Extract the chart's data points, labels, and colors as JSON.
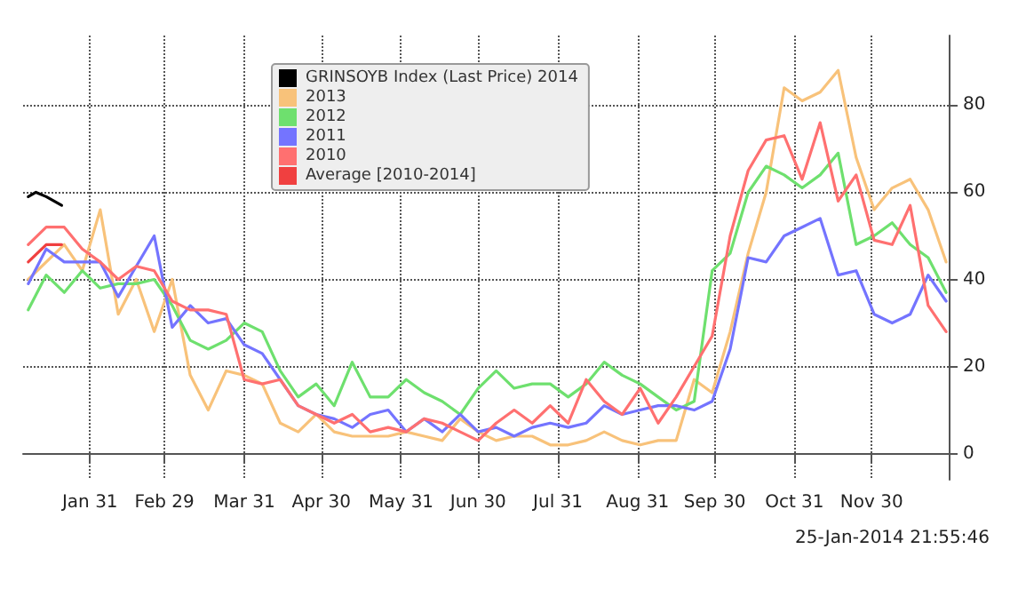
{
  "chart_data": {
    "type": "line",
    "xlim": [
      "--01-05",
      "--12-30"
    ],
    "xticks": [
      {
        "value": "--01-31",
        "label": "Jan 31"
      },
      {
        "value": "--02-29",
        "label": "Feb 29"
      },
      {
        "value": "--03-31",
        "label": "Mar 31"
      },
      {
        "value": "--04-30",
        "label": "Apr 30"
      },
      {
        "value": "--05-31",
        "label": "May 31"
      },
      {
        "value": "--06-30",
        "label": "Jun 30"
      },
      {
        "value": "--07-31",
        "label": "Jul 31"
      },
      {
        "value": "--08-31",
        "label": "Aug 31"
      },
      {
        "value": "--09-30",
        "label": "Sep 30"
      },
      {
        "value": "--10-31",
        "label": "Oct 31"
      },
      {
        "value": "--11-30",
        "label": "Nov 30"
      }
    ],
    "x": [
      "--01-07",
      "--01-14",
      "--01-21",
      "--01-28",
      "--02-04",
      "--02-11",
      "--02-18",
      "--02-25",
      "--03-03",
      "--03-10",
      "--03-17",
      "--03-24",
      "--03-31",
      "--04-07",
      "--04-14",
      "--04-21",
      "--04-28",
      "--05-05",
      "--05-12",
      "--05-19",
      "--05-26",
      "--06-02",
      "--06-09",
      "--06-16",
      "--06-23",
      "--06-30",
      "--07-07",
      "--07-14",
      "--07-21",
      "--07-28",
      "--08-04",
      "--08-11",
      "--08-18",
      "--08-25",
      "--09-01",
      "--09-08",
      "--09-15",
      "--09-22",
      "--09-29",
      "--10-06",
      "--10-13",
      "--10-20",
      "--10-27",
      "--11-03",
      "--11-10",
      "--11-17",
      "--11-24",
      "--12-01",
      "--12-08",
      "--12-15",
      "--12-22",
      "--12-29"
    ],
    "ylim": [
      -6,
      96
    ],
    "yticks": [
      0,
      20,
      40,
      60,
      80
    ],
    "grid": true,
    "legend": "top left",
    "marker": "none",
    "line_style": "solid",
    "annotations": [
      "25-Jan-2014 21:55:46"
    ],
    "series": [
      {
        "name": "GRINSOYB Index (Last Price) 2014",
        "color": "#000000",
        "x": [
          "--01-07",
          "--01-10",
          "--01-14",
          "--01-20"
        ],
        "values": [
          59,
          60,
          59,
          57
        ]
      },
      {
        "name": "2013",
        "color": "#f8c27a",
        "values": [
          40,
          44,
          48,
          42,
          56,
          32,
          40,
          28,
          40,
          18,
          10,
          19,
          18,
          16,
          7,
          5,
          9,
          5,
          4,
          4,
          4,
          5,
          4,
          3,
          8,
          5,
          3,
          4,
          4,
          2,
          2,
          3,
          5,
          3,
          2,
          3,
          3,
          17,
          14,
          28,
          46,
          60,
          84,
          81,
          83,
          88,
          68,
          56,
          61,
          63,
          56,
          44
        ]
      },
      {
        "name": "2012",
        "color": "#6ee06e",
        "values": [
          33,
          41,
          37,
          42,
          38,
          39,
          39,
          40,
          34,
          26,
          24,
          26,
          30,
          28,
          19,
          13,
          16,
          11,
          21,
          13,
          13,
          17,
          14,
          12,
          9,
          15,
          19,
          15,
          16,
          16,
          13,
          16,
          21,
          18,
          16,
          13,
          10,
          12,
          42,
          46,
          60,
          66,
          64,
          61,
          64,
          69,
          48,
          50,
          53,
          48,
          45,
          37
        ]
      },
      {
        "name": "2011",
        "color": "#7474ff",
        "values": [
          39,
          47,
          44,
          44,
          44,
          36,
          43,
          50,
          29,
          34,
          30,
          31,
          25,
          23,
          17,
          11,
          9,
          8,
          6,
          9,
          10,
          5,
          8,
          5,
          9,
          5,
          6,
          4,
          6,
          7,
          6,
          7,
          11,
          9,
          10,
          11,
          11,
          10,
          12,
          24,
          45,
          44,
          50,
          52,
          54,
          41,
          42,
          32,
          30,
          32,
          41,
          35
        ]
      },
      {
        "name": "2010",
        "color": "#ff7070",
        "values": [
          48,
          52,
          52,
          47,
          44,
          40,
          43,
          42,
          35,
          33,
          33,
          32,
          17,
          16,
          17,
          11,
          9,
          7,
          9,
          5,
          6,
          5,
          8,
          7,
          5,
          3,
          7,
          10,
          7,
          11,
          7,
          17,
          12,
          9,
          15,
          7,
          13,
          20,
          27,
          50,
          65,
          72,
          73,
          63,
          76,
          58,
          64,
          49,
          48,
          57,
          34,
          28
        ]
      },
      {
        "name": "Average [2010-2014]",
        "color": "#f04040",
        "x": [
          "--01-07",
          "--01-14",
          "--01-20"
        ],
        "values": [
          44,
          48,
          48
        ]
      }
    ]
  }
}
